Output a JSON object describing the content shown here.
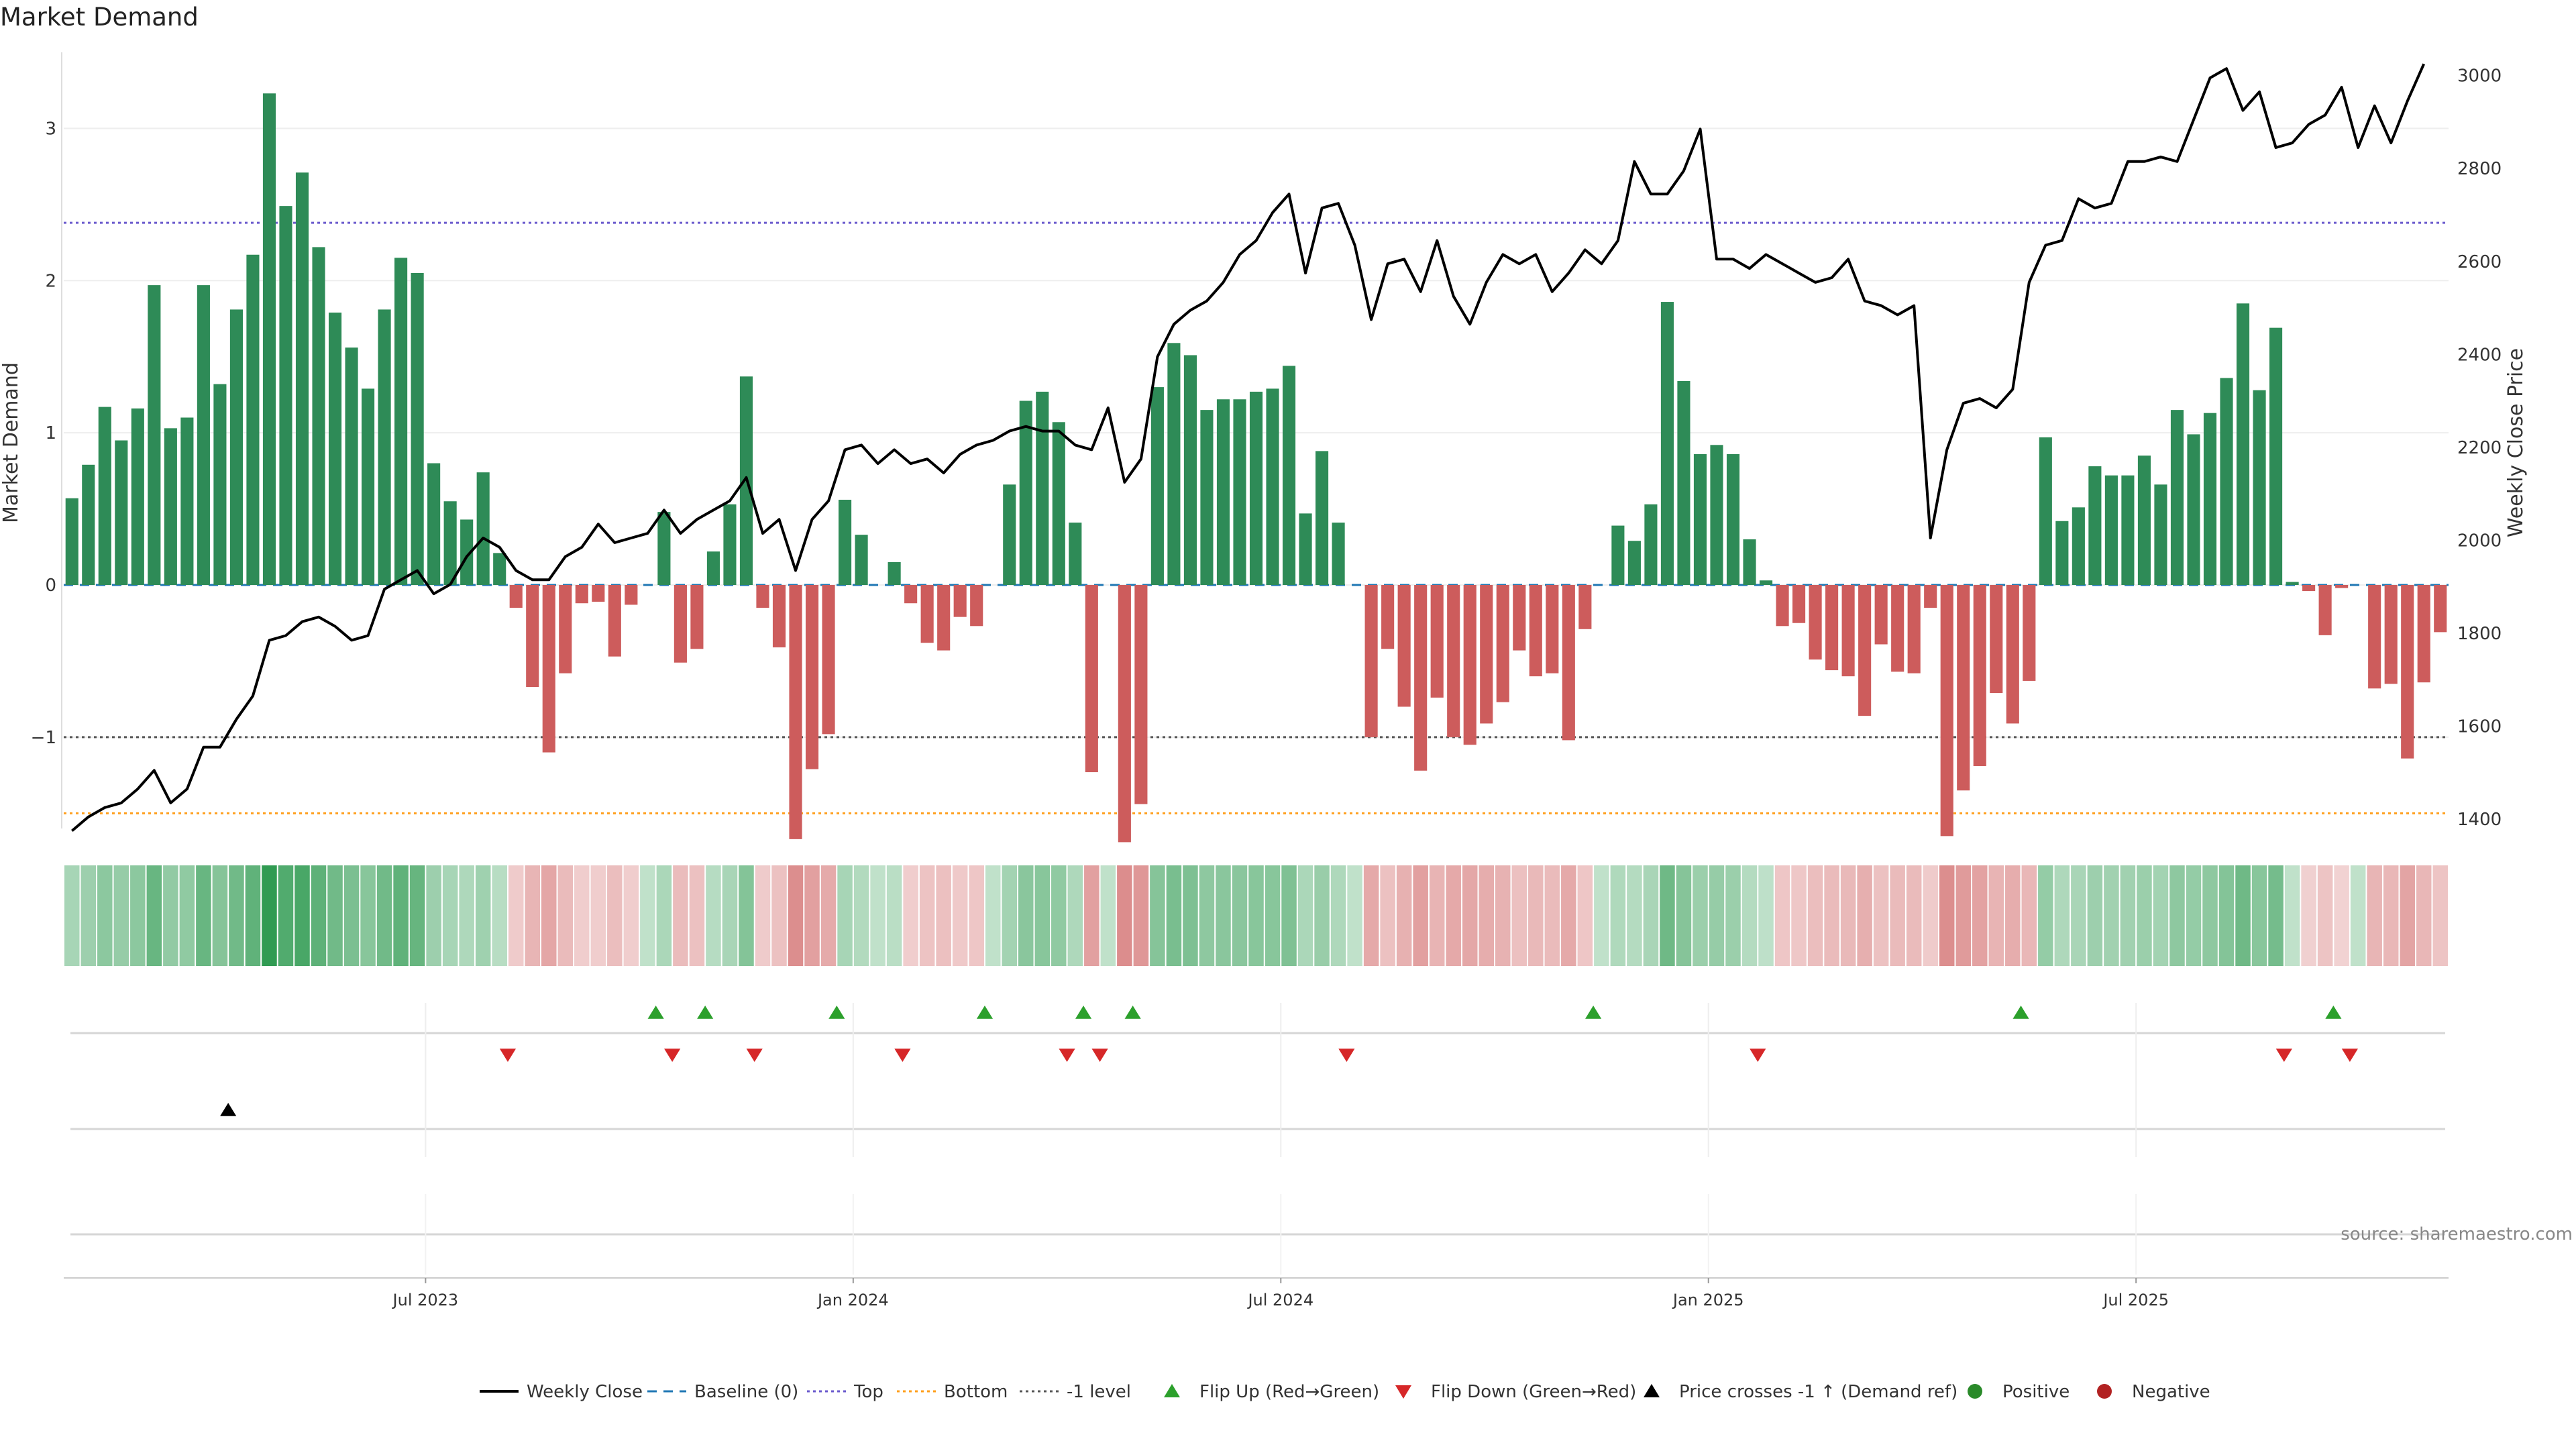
{
  "title": "Market Demand",
  "source": "source: sharemaestro.com",
  "legend": [
    {
      "label": "Weekly Close",
      "kind": "line",
      "color": "#000000"
    },
    {
      "label": "Baseline (0)",
      "kind": "dash",
      "color": "#1f77b4"
    },
    {
      "label": "Top",
      "kind": "dot",
      "color": "#6a5acd"
    },
    {
      "label": "Bottom",
      "kind": "dot",
      "color": "#ff9f1c"
    },
    {
      "label": "-1 level",
      "kind": "dot",
      "color": "#555555"
    },
    {
      "label": "Flip Up (Red→Green)",
      "kind": "tri-up",
      "color": "#2ca02c"
    },
    {
      "label": "Flip Down (Green→Red)",
      "kind": "tri-down",
      "color": "#d62728"
    },
    {
      "label": "Price crosses -1 ↑ (Demand ref)",
      "kind": "tri-up",
      "color": "#000000"
    },
    {
      "label": "Positive",
      "kind": "dot-marker",
      "color": "#2a8a2a"
    },
    {
      "label": "Negative",
      "kind": "dot-marker",
      "color": "#b22222"
    }
  ],
  "chart_data": {
    "type": "bar",
    "ylabel": "Market Demand",
    "y2label": "Weekly Close Price",
    "ylim": [
      -1.6,
      3.5
    ],
    "y2lim": [
      1380,
      3050
    ],
    "yticks": [
      -1,
      0,
      1,
      2,
      3
    ],
    "y2ticks": [
      1400,
      1600,
      1800,
      2000,
      2200,
      2400,
      2600,
      2800,
      3000
    ],
    "xticks": [
      {
        "label": "Jul 2023",
        "index": 22
      },
      {
        "label": "Jan 2024",
        "index": 48
      },
      {
        "label": "Jul 2024",
        "index": 74
      },
      {
        "label": "Jan 2025",
        "index": 100
      },
      {
        "label": "Jul 2025",
        "index": 126
      }
    ],
    "reference_lines": {
      "baseline": 0,
      "top": 2.38,
      "bottom": -1.5,
      "minus_one": -1
    },
    "positive_color": "#2e8b57",
    "negative_color": "#cd5c5c",
    "demand": [
      0.57,
      0.79,
      1.17,
      0.95,
      1.16,
      1.97,
      1.03,
      1.1,
      1.97,
      1.32,
      1.81,
      2.17,
      3.23,
      2.49,
      2.71,
      2.22,
      1.79,
      1.56,
      1.29,
      1.81,
      2.15,
      2.05,
      0.8,
      0.55,
      0.43,
      0.74,
      0.21,
      -0.15,
      -0.67,
      -1.1,
      -0.58,
      -0.12,
      -0.11,
      -0.47,
      -0.13,
      0,
      0.48,
      -0.51,
      -0.42,
      0.22,
      0.53,
      1.37,
      -0.15,
      -0.41,
      -1.67,
      -1.21,
      -0.98,
      0.56,
      0.33,
      0,
      0.15,
      -0.12,
      -0.38,
      -0.43,
      -0.21,
      -0.27,
      0,
      0.66,
      1.21,
      1.27,
      1.07,
      0.41,
      -1.23,
      0,
      -1.69,
      -1.44,
      1.3,
      1.59,
      1.51,
      1.15,
      1.22,
      1.22,
      1.27,
      1.29,
      1.44,
      0.47,
      0.88,
      0.41,
      0,
      -1.0,
      -0.42,
      -0.8,
      -1.22,
      -0.74,
      -1.0,
      -1.05,
      -0.91,
      -0.77,
      -0.43,
      -0.6,
      -0.58,
      -1.02,
      -0.29,
      0,
      0.39,
      0.29,
      0.53,
      1.86,
      1.34,
      0.86,
      0.92,
      0.86,
      0.3,
      0.03,
      -0.27,
      -0.25,
      -0.49,
      -0.56,
      -0.6,
      -0.86,
      -0.39,
      -0.57,
      -0.58,
      -0.15,
      -1.65,
      -1.35,
      -1.19,
      -0.71,
      -0.91,
      -0.63,
      0.97,
      0.42,
      0.51,
      0.78,
      0.72,
      0.72,
      0.85,
      0.66,
      1.15,
      0.99,
      1.13,
      1.36,
      1.85,
      1.28,
      1.69,
      0.02,
      -0.04,
      -0.33,
      -0.02,
      0,
      -0.68,
      -0.65,
      -1.14,
      -0.64,
      -0.31
    ],
    "close": [
      1375,
      1405,
      1425,
      1435,
      1465,
      1505,
      1435,
      1465,
      1555,
      1555,
      1615,
      1665,
      1785,
      1795,
      1825,
      1835,
      1815,
      1785,
      1795,
      1895,
      1915,
      1935,
      1885,
      1905,
      1965,
      2005,
      1985,
      1935,
      1915,
      1915,
      1965,
      1985,
      2035,
      1995,
      2005,
      2015,
      2065,
      2015,
      2045,
      2065,
      2085,
      2135,
      2015,
      2045,
      1935,
      2045,
      2085,
      2195,
      2205,
      2165,
      2195,
      2165,
      2175,
      2145,
      2185,
      2205,
      2215,
      2235,
      2245,
      2235,
      2235,
      2205,
      2195,
      2285,
      2125,
      2175,
      2395,
      2465,
      2495,
      2515,
      2555,
      2615,
      2645,
      2705,
      2745,
      2575,
      2715,
      2725,
      2635,
      2475,
      2595,
      2605,
      2535,
      2645,
      2525,
      2465,
      2555,
      2615,
      2595,
      2615,
      2535,
      2575,
      2625,
      2595,
      2645,
      2815,
      2745,
      2745,
      2795,
      2885,
      2605,
      2605,
      2585,
      2615,
      2595,
      2575,
      2555,
      2565,
      2605,
      2515,
      2505,
      2485,
      2505,
      2005,
      2195,
      2295,
      2305,
      2285,
      2325,
      2555,
      2635,
      2645,
      2735,
      2715,
      2725,
      2815,
      2815,
      2825,
      2815,
      2905,
      2995,
      3015,
      2925,
      2965,
      2845,
      2855,
      2895,
      2915,
      2975,
      2845,
      2935,
      2855,
      2945,
      3025
    ]
  },
  "heat_strip": {
    "strengths": [
      0.57,
      0.79,
      1.17,
      0.95,
      1.16,
      1.97,
      1.03,
      1.1,
      1.97,
      1.32,
      1.81,
      2.17,
      3.23,
      2.49,
      2.71,
      2.22,
      1.79,
      1.56,
      1.29,
      1.81,
      2.15,
      2.05,
      0.8,
      0.55,
      0.43,
      0.74,
      0.21,
      -0.15,
      -0.67,
      -1.1,
      -0.58,
      -0.12,
      -0.11,
      -0.47,
      -0.13,
      0,
      0.48,
      -0.51,
      -0.42,
      0.22,
      0.53,
      1.37,
      -0.15,
      -0.41,
      -1.67,
      -1.21,
      -0.98,
      0.56,
      0.33,
      0,
      0.15,
      -0.12,
      -0.38,
      -0.43,
      -0.21,
      -0.27,
      0,
      0.66,
      1.21,
      1.27,
      1.07,
      0.41,
      -1.23,
      0,
      -1.69,
      -1.44,
      1.3,
      1.59,
      1.51,
      1.15,
      1.22,
      1.22,
      1.27,
      1.29,
      1.44,
      0.47,
      0.88,
      0.41,
      0,
      -1.0,
      -0.42,
      -0.8,
      -1.22,
      -0.74,
      -1.0,
      -1.05,
      -0.91,
      -0.77,
      -0.43,
      -0.6,
      -0.58,
      -1.02,
      -0.29,
      0,
      0.39,
      0.29,
      0.53,
      1.86,
      1.34,
      0.86,
      0.92,
      0.86,
      0.3,
      0.03,
      -0.27,
      -0.25,
      -0.49,
      -0.56,
      -0.6,
      -0.86,
      -0.39,
      -0.57,
      -0.58,
      -0.15,
      -1.65,
      -1.35,
      -1.19,
      -0.71,
      -0.91,
      -0.63,
      0.97,
      0.42,
      0.51,
      0.78,
      0.72,
      0.72,
      0.85,
      0.66,
      1.15,
      0.99,
      1.13,
      1.36,
      1.85,
      1.28,
      1.69,
      0.02,
      -0.04,
      -0.33,
      -0.02,
      0,
      -0.68,
      -0.65,
      -1.14,
      -0.64,
      -0.31
    ]
  },
  "flip_up_indices": [
    36,
    39,
    47,
    56,
    62,
    65,
    93,
    119,
    138
  ],
  "flip_down_indices": [
    27,
    37,
    42,
    51,
    61,
    63,
    78,
    103,
    135,
    139
  ],
  "price_cross_indices": [
    10
  ]
}
